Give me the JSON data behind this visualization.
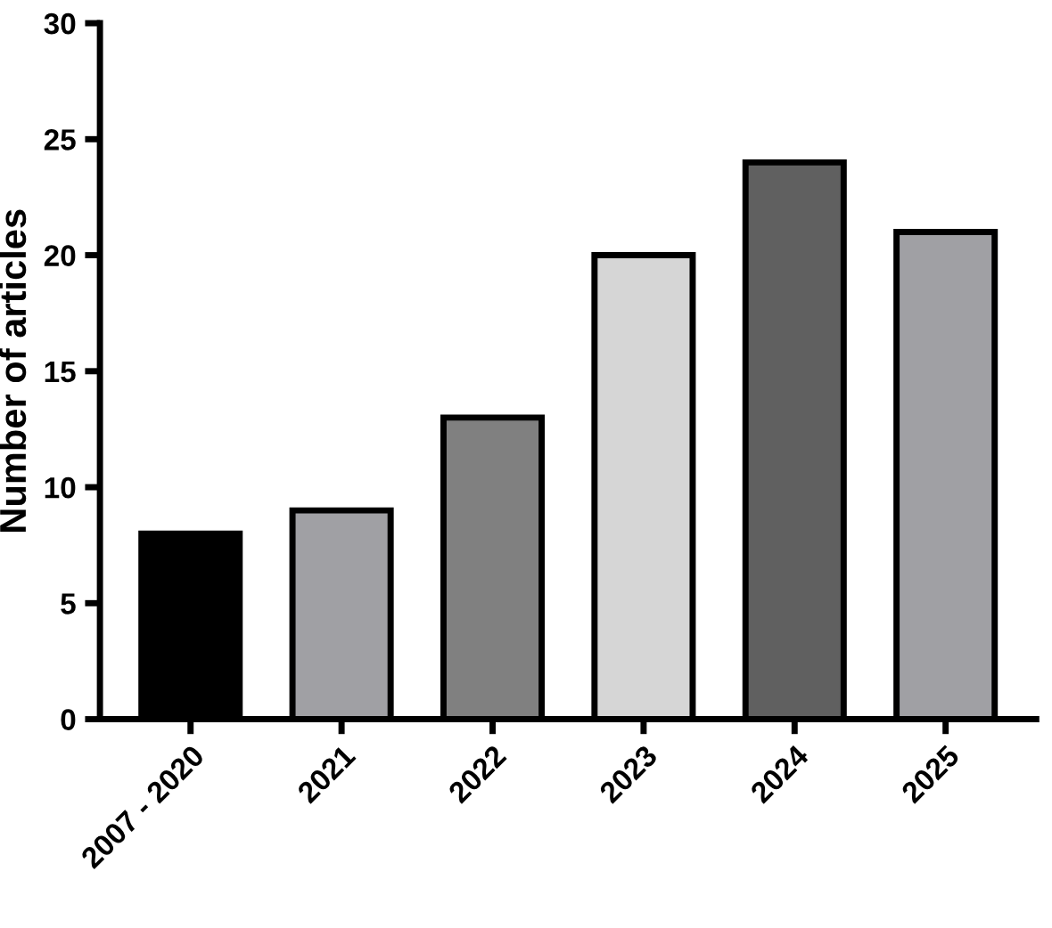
{
  "chart_data": {
    "type": "bar",
    "ylabel": "Number of articles",
    "categories": [
      "2007 - 2020",
      "2021",
      "2022",
      "2023",
      "2024",
      "2025"
    ],
    "values": [
      8,
      9,
      13,
      20,
      24,
      21
    ],
    "colors": [
      "#000000",
      "#a0a0a4",
      "#808080",
      "#d6d6d6",
      "#606060",
      "#a0a0a4"
    ],
    "ylim": [
      0,
      30
    ],
    "yticks": [
      0,
      5,
      10,
      15,
      20,
      25,
      30
    ],
    "grid": false,
    "legend": false
  }
}
